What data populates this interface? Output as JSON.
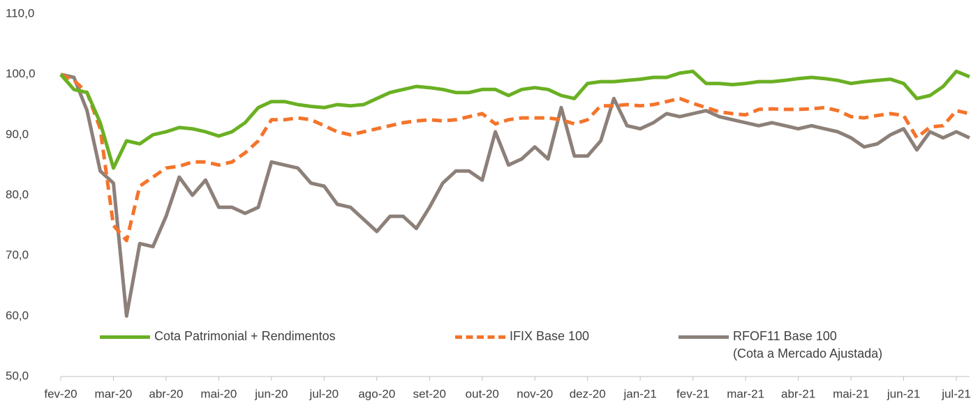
{
  "chart_data": {
    "type": "line",
    "categories": [
      "fev-20",
      null,
      null,
      null,
      "mar-20",
      null,
      null,
      null,
      "abr-20",
      null,
      null,
      null,
      "mai-20",
      null,
      null,
      null,
      "jun-20",
      null,
      null,
      null,
      "jul-20",
      null,
      null,
      null,
      "ago-20",
      null,
      null,
      null,
      "set-20",
      null,
      null,
      null,
      "out-20",
      null,
      null,
      null,
      "nov-20",
      null,
      null,
      null,
      "dez-20",
      null,
      null,
      null,
      "jan-21",
      null,
      null,
      null,
      "fev-21",
      null,
      null,
      null,
      "mar-21",
      null,
      null,
      null,
      "abr-21",
      null,
      null,
      null,
      "mai-21",
      null,
      null,
      null,
      "jun-21",
      null,
      null,
      null,
      "jul-21",
      null
    ],
    "series": [
      {
        "name": "Cota Patrimonial + Rendimentos",
        "color": "#6ab023",
        "dash": false,
        "values": [
          100,
          97.5,
          97,
          92,
          84.5,
          89,
          88.5,
          90,
          90.5,
          91.2,
          91,
          90.5,
          89.8,
          90.5,
          92,
          94.5,
          95.5,
          95.5,
          95,
          94.7,
          94.5,
          95,
          94.8,
          95,
          96,
          97,
          97.5,
          98,
          97.8,
          97.5,
          97,
          97,
          97.5,
          97.5,
          96.5,
          97.5,
          97.8,
          97.5,
          96.5,
          96,
          98.5,
          98.8,
          98.8,
          99,
          99.2,
          99.5,
          99.5,
          100.2,
          100.5,
          98.5,
          98.5,
          98.3,
          98.5,
          98.8,
          98.8,
          99,
          99.3,
          99.5,
          99.3,
          99,
          98.5,
          98.8,
          99,
          99.2,
          98.5,
          96,
          96.5,
          98,
          100.5,
          99.6
        ]
      },
      {
        "name": "IFIX Base 100",
        "color": "#f4742b",
        "dash": true,
        "values": [
          100,
          99,
          97,
          91,
          75,
          72.5,
          81.5,
          83,
          84.5,
          84.8,
          85.5,
          85.5,
          85,
          85.5,
          87,
          89,
          92.5,
          92.5,
          92.8,
          92.5,
          91.5,
          90.5,
          90,
          90.5,
          91,
          91.5,
          92,
          92.3,
          92.5,
          92.3,
          92.5,
          93,
          93.5,
          91.8,
          92.5,
          92.8,
          92.8,
          92.8,
          92.5,
          91.8,
          92.5,
          94.8,
          94.8,
          95,
          94.8,
          95,
          95.5,
          96,
          95.2,
          94.5,
          93.8,
          93.5,
          93.3,
          94.2,
          94.3,
          94.2,
          94.2,
          94.3,
          94.5,
          94,
          93,
          92.8,
          93.2,
          93.5,
          93.2,
          89.5,
          91.3,
          91.5,
          94,
          93.5
        ]
      },
      {
        "name": "RFOF11 Base 100\n(Cota a Mercado Ajustada)",
        "color": "#8c8079",
        "dash": false,
        "values": [
          100,
          99.5,
          94,
          84,
          82,
          60,
          72,
          71.5,
          76.5,
          83,
          80,
          82.5,
          78,
          78,
          77,
          78,
          85.5,
          85,
          84.5,
          82,
          81.5,
          78.5,
          78,
          76,
          74,
          76.5,
          76.5,
          74.5,
          78,
          82,
          84,
          84,
          82.5,
          90.5,
          85,
          86,
          88,
          86,
          94.5,
          86.5,
          86.5,
          89,
          96,
          91.5,
          91,
          92,
          93.5,
          93,
          93.5,
          94,
          93,
          92.5,
          92,
          91.5,
          92,
          91.5,
          91,
          91.5,
          91,
          90.5,
          89.5,
          88,
          88.5,
          90,
          91,
          87.5,
          90.5,
          89.5,
          90.5,
          89.5
        ]
      }
    ],
    "ylim": [
      50,
      110
    ],
    "yticks": [
      {
        "value": 50,
        "label": "50,0"
      },
      {
        "value": 60,
        "label": "60,0"
      },
      {
        "value": 70,
        "label": "70,0"
      },
      {
        "value": 80,
        "label": "80,0"
      },
      {
        "value": 90,
        "label": "90,0"
      },
      {
        "value": 100,
        "label": "100,0"
      },
      {
        "value": 110,
        "label": "110,0"
      }
    ],
    "grid": false
  }
}
